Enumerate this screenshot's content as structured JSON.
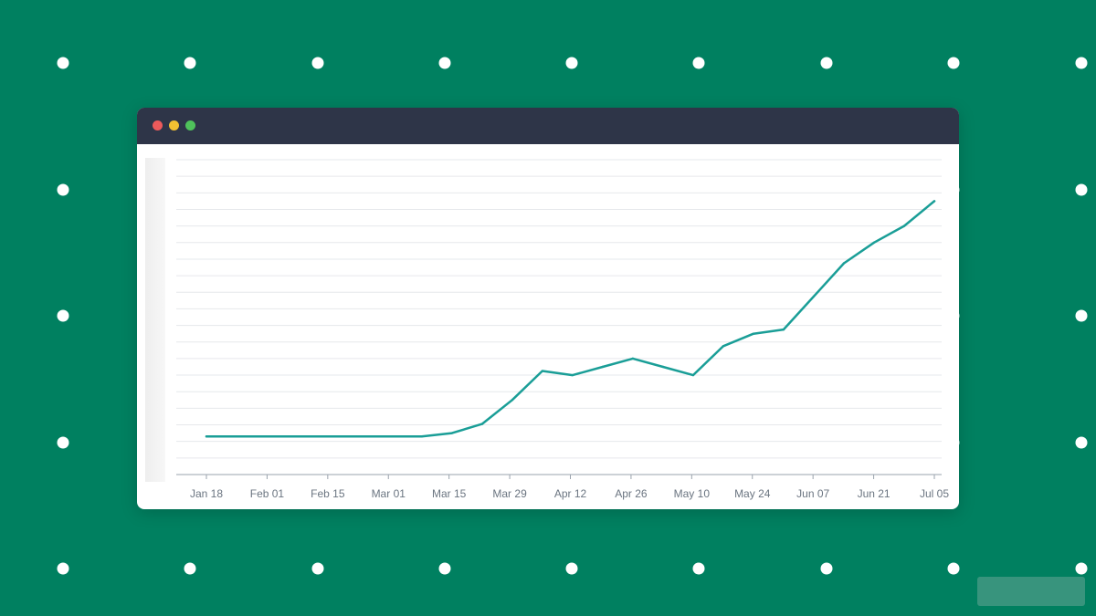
{
  "colors": {
    "background": "#008060",
    "dots": "#ffffff",
    "titlebar": "#2e3548",
    "window_buttons": [
      "#ed5a5b",
      "#f2c132",
      "#4fc25b"
    ],
    "line": "#1a9e97",
    "grid": "#e6e8ec",
    "axis": "#9aa3ad",
    "tick_label": "#6b7581"
  },
  "window": {
    "title": ""
  },
  "chart_data": {
    "type": "line",
    "title": "",
    "xlabel": "",
    "ylabel": "",
    "x_ticks": [
      "Jan 18",
      "Feb 01",
      "Feb 15",
      "Mar 01",
      "Mar 15",
      "Mar 29",
      "Apr 12",
      "Apr 26",
      "May 10",
      "May 24",
      "Jun 07",
      "Jun 21",
      "Jul 05"
    ],
    "grid": true,
    "ylim": [
      0,
      19
    ],
    "series": [
      {
        "x": [
          "Jan 18",
          "Jan 25",
          "Feb 01",
          "Feb 08",
          "Feb 15",
          "Feb 22",
          "Mar 01",
          "Mar 08",
          "Mar 15",
          "Mar 22",
          "Mar 29",
          "Apr 05",
          "Apr 12",
          "Apr 19",
          "Apr 26",
          "May 03",
          "May 10",
          "May 17",
          "May 24",
          "May 31",
          "Jun 07",
          "Jun 14",
          "Jun 21",
          "Jun 28",
          "Jul 05"
        ],
        "values": [
          2.3,
          2.3,
          2.3,
          2.3,
          2.3,
          2.3,
          2.3,
          2.3,
          2.5,
          3.05,
          4.5,
          6.25,
          6.0,
          6.5,
          7.0,
          6.5,
          6.0,
          7.75,
          8.5,
          8.75,
          10.75,
          12.75,
          14.0,
          15.0,
          16.5
        ]
      }
    ]
  }
}
